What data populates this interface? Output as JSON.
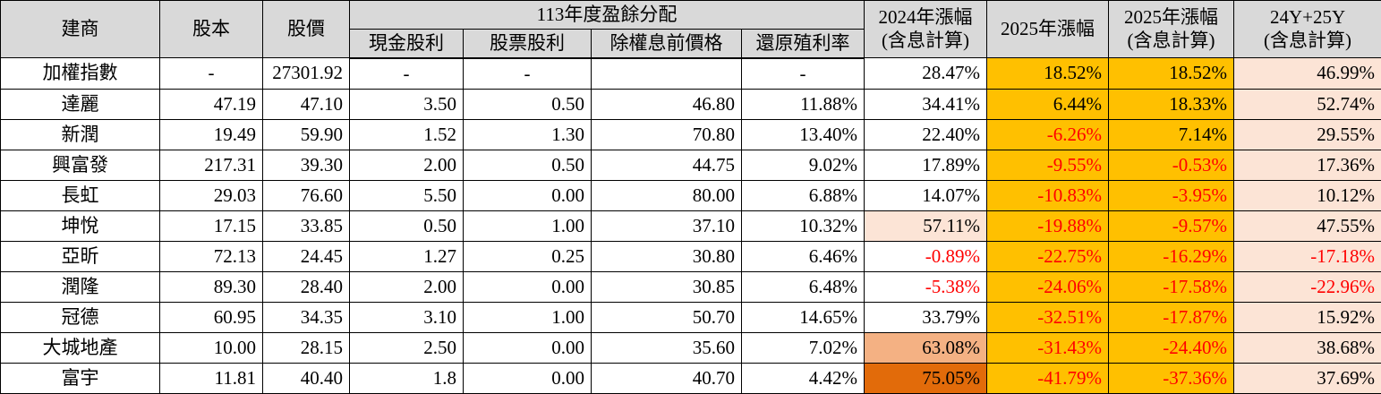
{
  "colors": {
    "header_bg": "#D9D9D9",
    "amber": "#FFC000",
    "peach": "#FCE4D6",
    "orange_medium": "#F4B183",
    "orange_strong": "#E26B0A",
    "negative_text": "#FF0000",
    "border": "#000000",
    "text": "#000000"
  },
  "chart_data": {
    "type": "table",
    "header": {
      "builder": "建商",
      "capital": "股本",
      "price": "股價",
      "group_113": "113年度盈餘分配",
      "sub_columns": [
        "現金股利",
        "股票股利",
        "除權息前價格",
        "還原殖利率"
      ],
      "col_2024_incl": [
        "2024年漲幅",
        "(含息計算)"
      ],
      "col_2025": "2025年漲幅",
      "col_2025_incl": [
        "2025年漲幅",
        "(含息計算)"
      ],
      "col_total": [
        "24Y+25Y",
        "(含息計算)"
      ]
    },
    "rows": [
      {
        "builder": "加權指數",
        "capital": "-",
        "price": "27301.92",
        "cash_dividend": "-",
        "stock_dividend": "-",
        "pre_ex_price": "",
        "restored_yield": "-",
        "gain_2024_incl": "28.47%",
        "gain_2025": "18.52%",
        "gain_2025_incl": "18.52%",
        "gain_total": "46.99%",
        "heat_2024": ""
      },
      {
        "builder": "達麗",
        "capital": "47.19",
        "price": "47.10",
        "cash_dividend": "3.50",
        "stock_dividend": "0.50",
        "pre_ex_price": "46.80",
        "restored_yield": "11.88%",
        "gain_2024_incl": "34.41%",
        "gain_2025": "6.44%",
        "gain_2025_incl": "18.33%",
        "gain_total": "52.74%",
        "heat_2024": ""
      },
      {
        "builder": "新潤",
        "capital": "19.49",
        "price": "59.90",
        "cash_dividend": "1.52",
        "stock_dividend": "1.30",
        "pre_ex_price": "70.80",
        "restored_yield": "13.40%",
        "gain_2024_incl": "22.40%",
        "gain_2025": "-6.26%",
        "gain_2025_incl": "7.14%",
        "gain_total": "29.55%",
        "heat_2024": ""
      },
      {
        "builder": "興富發",
        "capital": "217.31",
        "price": "39.30",
        "cash_dividend": "2.00",
        "stock_dividend": "0.50",
        "pre_ex_price": "44.75",
        "restored_yield": "9.02%",
        "gain_2024_incl": "17.89%",
        "gain_2025": "-9.55%",
        "gain_2025_incl": "-0.53%",
        "gain_total": "17.36%",
        "heat_2024": ""
      },
      {
        "builder": "長虹",
        "capital": "29.03",
        "price": "76.60",
        "cash_dividend": "5.50",
        "stock_dividend": "0.00",
        "pre_ex_price": "80.00",
        "restored_yield": "6.88%",
        "gain_2024_incl": "14.07%",
        "gain_2025": "-10.83%",
        "gain_2025_incl": "-3.95%",
        "gain_total": "10.12%",
        "heat_2024": ""
      },
      {
        "builder": "坤悅",
        "capital": "17.15",
        "price": "33.85",
        "cash_dividend": "0.50",
        "stock_dividend": "1.00",
        "pre_ex_price": "37.10",
        "restored_yield": "10.32%",
        "gain_2024_incl": "57.11%",
        "gain_2025": "-19.88%",
        "gain_2025_incl": "-9.57%",
        "gain_total": "47.55%",
        "heat_2024": "peach"
      },
      {
        "builder": "亞昕",
        "capital": "72.13",
        "price": "24.45",
        "cash_dividend": "1.27",
        "stock_dividend": "0.25",
        "pre_ex_price": "30.80",
        "restored_yield": "6.46%",
        "gain_2024_incl": "-0.89%",
        "gain_2025": "-22.75%",
        "gain_2025_incl": "-16.29%",
        "gain_total": "-17.18%",
        "heat_2024": ""
      },
      {
        "builder": "潤隆",
        "capital": "89.30",
        "price": "28.40",
        "cash_dividend": "2.00",
        "stock_dividend": "0.00",
        "pre_ex_price": "30.85",
        "restored_yield": "6.48%",
        "gain_2024_incl": "-5.38%",
        "gain_2025": "-24.06%",
        "gain_2025_incl": "-17.58%",
        "gain_total": "-22.96%",
        "heat_2024": ""
      },
      {
        "builder": "冠德",
        "capital": "60.95",
        "price": "34.35",
        "cash_dividend": "3.10",
        "stock_dividend": "1.00",
        "pre_ex_price": "50.70",
        "restored_yield": "14.65%",
        "gain_2024_incl": "33.79%",
        "gain_2025": "-32.51%",
        "gain_2025_incl": "-17.87%",
        "gain_total": "15.92%",
        "heat_2024": ""
      },
      {
        "builder": "大城地產",
        "capital": "10.00",
        "price": "28.15",
        "cash_dividend": "2.50",
        "stock_dividend": "0.00",
        "pre_ex_price": "35.60",
        "restored_yield": "7.02%",
        "gain_2024_incl": "63.08%",
        "gain_2025": "-31.43%",
        "gain_2025_incl": "-24.40%",
        "gain_total": "38.68%",
        "heat_2024": "orange_medium"
      },
      {
        "builder": "富宇",
        "capital": "11.81",
        "price": "40.40",
        "cash_dividend": "1.8",
        "stock_dividend": "0.00",
        "pre_ex_price": "40.70",
        "restored_yield": "4.42%",
        "gain_2024_incl": "75.05%",
        "gain_2025": "-41.79%",
        "gain_2025_incl": "-37.36%",
        "gain_total": "37.69%",
        "heat_2024": "orange_strong"
      }
    ]
  }
}
